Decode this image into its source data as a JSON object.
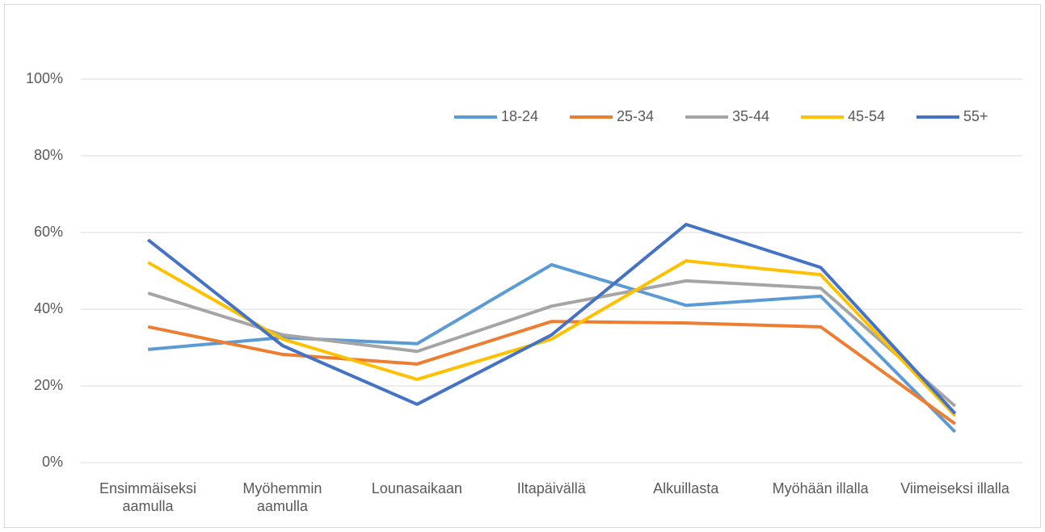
{
  "chart_data": {
    "type": "line",
    "categories": [
      "Ensimmäiseksi aamulla",
      "Myöhemmin aamulla",
      "Lounasaikaan",
      "Iltapäivällä",
      "Alkuillasta",
      "Myöhään illalla",
      "Viimeiseksi illalla"
    ],
    "series": [
      {
        "name": "18-24",
        "color": "#5b9bd5",
        "values": [
          29.5,
          32.6,
          31,
          51.6,
          41,
          43.4,
          8
        ]
      },
      {
        "name": "25-34",
        "color": "#ed7d31",
        "values": [
          35.4,
          28.2,
          25.7,
          36.8,
          36.4,
          35.4,
          10.1
        ]
      },
      {
        "name": "35-44",
        "color": "#a5a5a5",
        "values": [
          44.2,
          33.3,
          29,
          40.8,
          47.4,
          45.5,
          14.7
        ]
      },
      {
        "name": "45-54",
        "color": "#ffc000",
        "values": [
          52.2,
          32.2,
          21.7,
          32.2,
          52.6,
          49,
          12.2
        ]
      },
      {
        "name": "55+",
        "color": "#4472c4",
        "values": [
          58.1,
          30.5,
          15.2,
          33.3,
          62.1,
          50.9,
          12.8
        ]
      }
    ],
    "ylim": [
      0,
      100
    ],
    "yticks": [
      {
        "value": 0,
        "label": "0%"
      },
      {
        "value": 20,
        "label": "20%"
      },
      {
        "value": 40,
        "label": "40%"
      },
      {
        "value": 60,
        "label": "60%"
      },
      {
        "value": 80,
        "label": "80%"
      },
      {
        "value": 100,
        "label": "100%"
      }
    ],
    "grid": true,
    "legend": "top"
  }
}
